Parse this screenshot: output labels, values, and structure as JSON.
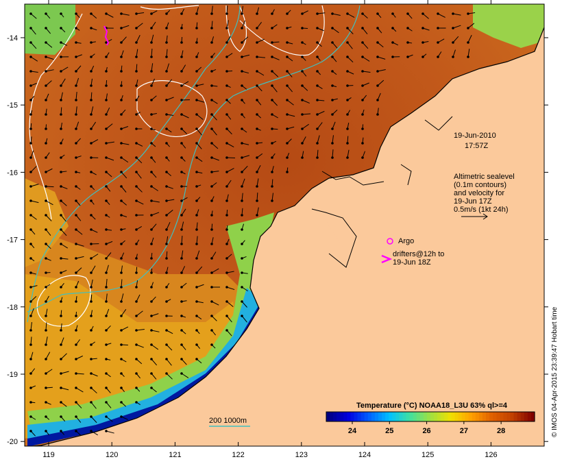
{
  "map": {
    "x_ticks": [
      "119",
      "120",
      "121",
      "122",
      "123",
      "124",
      "125",
      "126"
    ],
    "y_ticks": [
      "-14",
      "-15",
      "-16",
      "-17",
      "-18",
      "-19",
      "-20"
    ],
    "timestamp_date": "19-Jun-2010",
    "timestamp_time": "17:57Z",
    "altimetry_lines": [
      "Altimetric sealevel",
      "(0.1m contours)",
      "and velocity for",
      "19-Jun 17Z",
      "0.5m/s (1kt 24h)"
    ],
    "argo_label": "Argo",
    "drifters_lines": [
      "drifters@12h to",
      "19-Jun 18Z"
    ],
    "isobath_label": "200  1000m",
    "credit": "© IMOS 04-Apr-2015 23:39:47 Hobart time",
    "land_color": "#fbc99b",
    "argo_color": "#ff00ff",
    "contour_color": "#ffffff",
    "isobath_color": "#40c0c0"
  },
  "colorbar": {
    "title": "Temperature (°C) NOAA18_L3U 63% ql>=4",
    "tick_labels": [
      "24",
      "25",
      "26",
      "27",
      "28"
    ],
    "range": [
      23.3,
      28.9
    ],
    "ticks": [
      24,
      25,
      26,
      27,
      28
    ],
    "colors": [
      "#000080",
      "#0000e0",
      "#0060ff",
      "#00c0ff",
      "#40e0a0",
      "#a0e040",
      "#f0e000",
      "#ffa000",
      "#e06000",
      "#c04000",
      "#800000"
    ]
  }
}
